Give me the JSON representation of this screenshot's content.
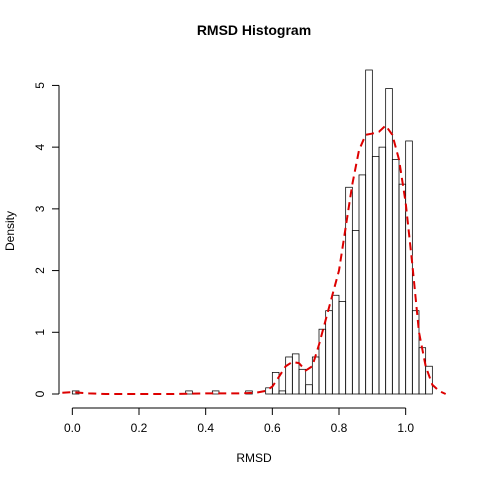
{
  "chart_data": {
    "type": "bar",
    "title": "RMSD Histogram",
    "xlabel": "RMSD",
    "ylabel": "Density",
    "xlim": [
      -0.04,
      1.13
    ],
    "ylim": [
      0,
      5.25
    ],
    "x_ticks": [
      0.0,
      0.2,
      0.4,
      0.6,
      0.8,
      1.0
    ],
    "x_tick_labels": [
      "0.0",
      "0.2",
      "0.4",
      "0.6",
      "0.8",
      "1.0"
    ],
    "y_ticks": [
      0,
      1,
      2,
      3,
      4,
      5
    ],
    "y_tick_labels": [
      "0",
      "1",
      "2",
      "3",
      "4",
      "5"
    ],
    "bin_width": 0.02,
    "series": [
      {
        "kind": "histogram",
        "bins": [
          {
            "x0": 0.0,
            "x1": 0.02,
            "density": 0.05
          },
          {
            "x0": 0.34,
            "x1": 0.36,
            "density": 0.05
          },
          {
            "x0": 0.42,
            "x1": 0.44,
            "density": 0.05
          },
          {
            "x0": 0.52,
            "x1": 0.54,
            "density": 0.05
          },
          {
            "x0": 0.58,
            "x1": 0.6,
            "density": 0.1
          },
          {
            "x0": 0.6,
            "x1": 0.62,
            "density": 0.35
          },
          {
            "x0": 0.62,
            "x1": 0.64,
            "density": 0.05
          },
          {
            "x0": 0.64,
            "x1": 0.66,
            "density": 0.6
          },
          {
            "x0": 0.66,
            "x1": 0.68,
            "density": 0.65
          },
          {
            "x0": 0.68,
            "x1": 0.7,
            "density": 0.4
          },
          {
            "x0": 0.7,
            "x1": 0.72,
            "density": 0.15
          },
          {
            "x0": 0.72,
            "x1": 0.74,
            "density": 0.6
          },
          {
            "x0": 0.74,
            "x1": 0.76,
            "density": 1.05
          },
          {
            "x0": 0.76,
            "x1": 0.78,
            "density": 1.35
          },
          {
            "x0": 0.78,
            "x1": 0.8,
            "density": 1.6
          },
          {
            "x0": 0.8,
            "x1": 0.82,
            "density": 1.5
          },
          {
            "x0": 0.82,
            "x1": 0.84,
            "density": 3.35
          },
          {
            "x0": 0.84,
            "x1": 0.86,
            "density": 2.65
          },
          {
            "x0": 0.86,
            "x1": 0.88,
            "density": 3.55
          },
          {
            "x0": 0.88,
            "x1": 0.9,
            "density": 5.25
          },
          {
            "x0": 0.9,
            "x1": 0.92,
            "density": 3.85
          },
          {
            "x0": 0.92,
            "x1": 0.94,
            "density": 4.0
          },
          {
            "x0": 0.94,
            "x1": 0.96,
            "density": 4.95
          },
          {
            "x0": 0.96,
            "x1": 0.98,
            "density": 3.8
          },
          {
            "x0": 0.98,
            "x1": 1.0,
            "density": 3.4
          },
          {
            "x0": 1.0,
            "x1": 1.02,
            "density": 4.1
          },
          {
            "x0": 1.02,
            "x1": 1.04,
            "density": 1.35
          },
          {
            "x0": 1.04,
            "x1": 1.06,
            "density": 0.75
          },
          {
            "x0": 1.06,
            "x1": 1.08,
            "density": 0.45
          }
        ]
      },
      {
        "kind": "density_curve",
        "color": "#dd0000",
        "line_style": "dashed",
        "x": [
          -0.03,
          0.0,
          0.05,
          0.1,
          0.2,
          0.3,
          0.4,
          0.5,
          0.55,
          0.58,
          0.6,
          0.62,
          0.64,
          0.66,
          0.68,
          0.7,
          0.72,
          0.74,
          0.76,
          0.78,
          0.8,
          0.82,
          0.84,
          0.86,
          0.88,
          0.9,
          0.92,
          0.94,
          0.96,
          0.98,
          1.0,
          1.02,
          1.04,
          1.06,
          1.08,
          1.1,
          1.12
        ],
        "y": [
          0.02,
          0.03,
          0.01,
          0.0,
          0.0,
          0.0,
          0.01,
          0.01,
          0.02,
          0.05,
          0.12,
          0.28,
          0.45,
          0.52,
          0.5,
          0.38,
          0.45,
          0.8,
          1.2,
          1.6,
          2.0,
          2.7,
          3.4,
          3.95,
          4.2,
          4.22,
          4.25,
          4.35,
          4.2,
          3.8,
          3.1,
          2.1,
          1.0,
          0.45,
          0.15,
          0.05,
          0.0
        ]
      }
    ],
    "grid": false,
    "legend": "none"
  }
}
